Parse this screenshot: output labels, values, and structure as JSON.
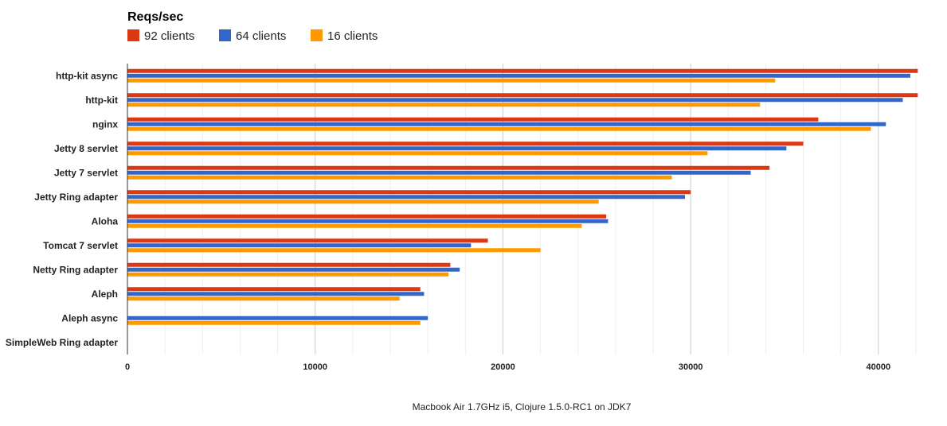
{
  "chart_data": {
    "type": "bar",
    "orientation": "horizontal",
    "title": "Reqs/sec",
    "caption": "Macbook Air 1.7GHz i5, Clojure 1.5.0-RC1 on JDK7",
    "legend_position": "top-left",
    "grid": true,
    "xlim": [
      0,
      42000
    ],
    "ticks": [
      {
        "value": 0,
        "label": "0"
      },
      {
        "value": 10000,
        "label": "10000"
      },
      {
        "value": 20000,
        "label": "20000"
      },
      {
        "value": 30000,
        "label": "30000"
      },
      {
        "value": 40000,
        "label": "40000"
      }
    ],
    "categories": [
      "http-kit async",
      "http-kit",
      "nginx",
      "Jetty 8 servlet",
      "Jetty 7 servlet",
      "Jetty Ring adapter",
      "Aloha",
      "Tomcat 7 servlet",
      "Netty Ring adapter",
      "Aleph",
      "Aleph async",
      "SimpleWeb Ring adapter"
    ],
    "series": [
      {
        "name": "92 clients",
        "color": "#dc3912",
        "values": [
          42100,
          42100,
          36800,
          36000,
          34200,
          30000,
          25500,
          19200,
          17200,
          15600,
          null,
          null
        ]
      },
      {
        "name": "64 clients",
        "color": "#3366cc",
        "values": [
          41700,
          41300,
          40400,
          35100,
          33200,
          29700,
          25600,
          18300,
          17700,
          15800,
          16000,
          null
        ]
      },
      {
        "name": "16 clients",
        "color": "#ff9900",
        "values": [
          34500,
          33700,
          39600,
          30900,
          29000,
          25100,
          24200,
          22000,
          17100,
          14500,
          15600,
          null
        ]
      }
    ]
  }
}
